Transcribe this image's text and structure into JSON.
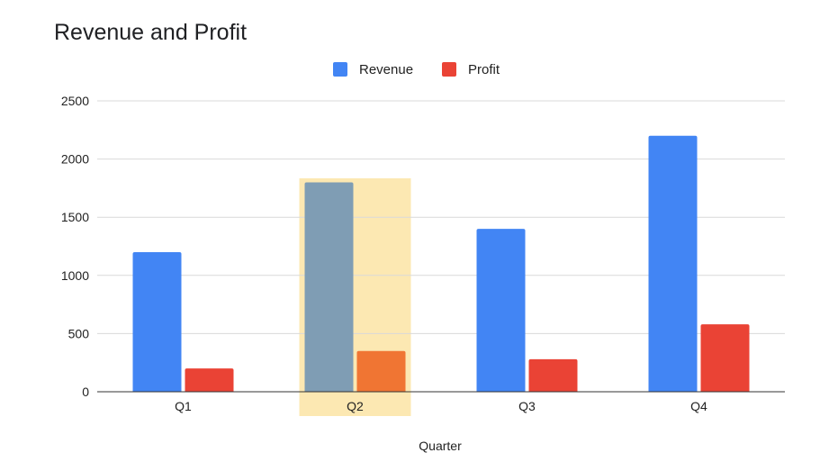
{
  "chart_data": {
    "type": "bar",
    "title": "Revenue and Profit",
    "xlabel": "Quarter",
    "ylabel": "",
    "categories": [
      "Q1",
      "Q2",
      "Q3",
      "Q4"
    ],
    "series": [
      {
        "name": "Revenue",
        "color": "#4285F4",
        "values": [
          1200,
          1800,
          1400,
          2200
        ]
      },
      {
        "name": "Profit",
        "color": "#EA4335",
        "values": [
          200,
          350,
          280,
          580
        ]
      }
    ],
    "ylim": [
      0,
      2500
    ],
    "yticks": [
      0,
      500,
      1000,
      1500,
      2000,
      2500
    ],
    "grid": true,
    "legend_position": "top-center",
    "highlight": {
      "category": "Q2",
      "band_color": "#FCE8B2",
      "series_colors": [
        "#7F9DB4",
        "#F07533"
      ],
      "label_color": "#555555"
    }
  }
}
